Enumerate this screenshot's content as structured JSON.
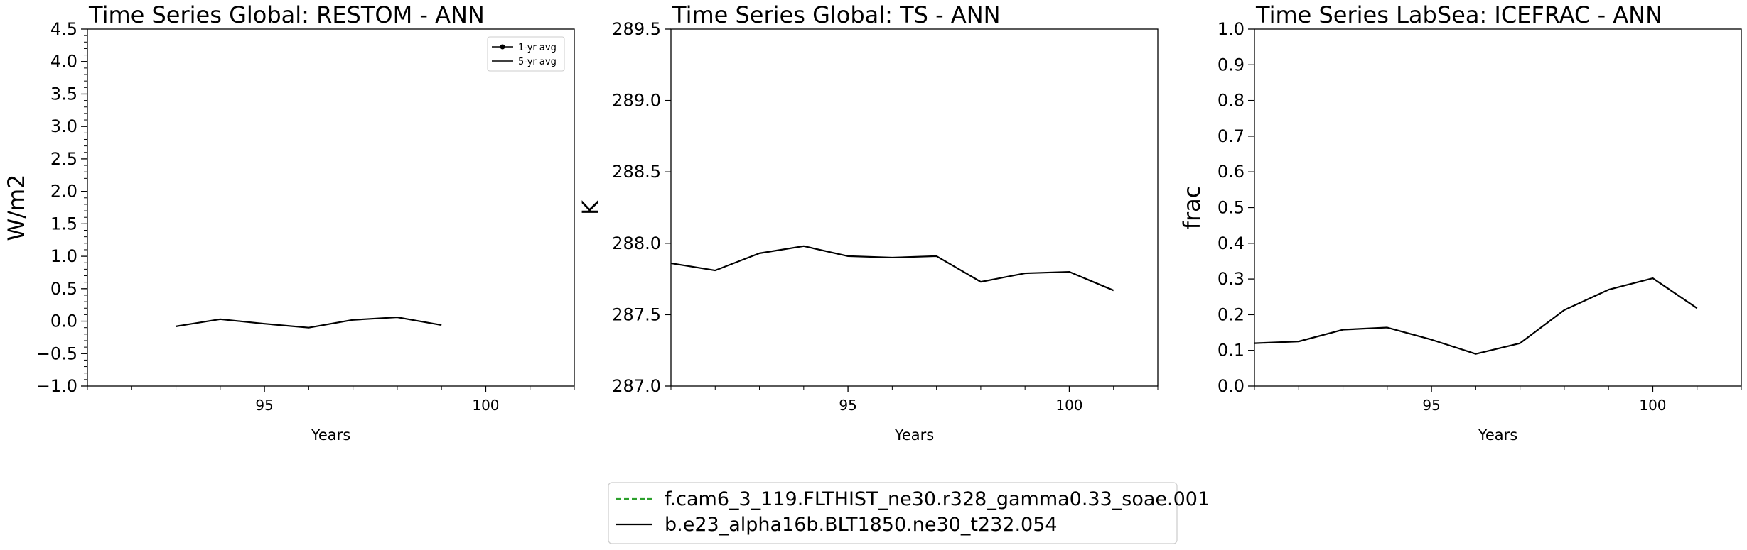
{
  "chart_data": [
    {
      "type": "line",
      "title": "Time Series Global: RESTOM - ANN",
      "xlabel": "Years",
      "ylabel": "W/m2",
      "xlim": [
        91,
        102
      ],
      "ylim": [
        -1.0,
        4.5
      ],
      "x_ticks": [
        "95",
        "100"
      ],
      "y_ticks": [
        "−1.0",
        "−0.5",
        "0.0",
        "0.5",
        "1.0",
        "1.5",
        "2.0",
        "2.5",
        "3.0",
        "3.5",
        "4.0",
        "4.5"
      ],
      "grid": false,
      "legend": [
        "1-yr avg",
        "5-yr avg"
      ],
      "legend_position": "top-right",
      "series": [
        {
          "name": "5-yr avg",
          "color": "#000000",
          "x": [
            93,
            94,
            95,
            96,
            97,
            98,
            99
          ],
          "y": [
            -0.08,
            0.03,
            -0.04,
            -0.1,
            0.02,
            0.06,
            -0.06
          ]
        }
      ]
    },
    {
      "type": "line",
      "title": "Time Series Global: TS - ANN",
      "xlabel": "Years",
      "ylabel": "K",
      "xlim": [
        91,
        102
      ],
      "ylim": [
        287.0,
        289.5
      ],
      "x_ticks": [
        "95",
        "100"
      ],
      "y_ticks": [
        "287.0",
        "287.5",
        "288.0",
        "288.5",
        "289.0",
        "289.5"
      ],
      "grid": false,
      "series": [
        {
          "color": "#000000",
          "x": [
            91,
            92,
            93,
            94,
            95,
            96,
            97,
            98,
            99,
            100,
            101
          ],
          "y": [
            287.86,
            287.81,
            287.93,
            287.98,
            287.91,
            287.9,
            287.91,
            287.73,
            287.79,
            287.8,
            287.67
          ]
        }
      ]
    },
    {
      "type": "line",
      "title": "Time Series LabSea: ICEFRAC - ANN",
      "xlabel": "Years",
      "ylabel": "frac",
      "xlim": [
        91,
        102
      ],
      "ylim": [
        0.0,
        1.0
      ],
      "x_ticks": [
        "95",
        "100"
      ],
      "y_ticks": [
        "0.0",
        "0.1",
        "0.2",
        "0.3",
        "0.4",
        "0.5",
        "0.6",
        "0.7",
        "0.8",
        "0.9",
        "1.0"
      ],
      "grid": false,
      "series": [
        {
          "color": "#000000",
          "x": [
            91,
            92,
            93,
            94,
            95,
            96,
            97,
            98,
            99,
            100,
            101
          ],
          "y": [
            0.12,
            0.125,
            0.158,
            0.164,
            0.13,
            0.09,
            0.12,
            0.213,
            0.27,
            0.302,
            0.218
          ]
        }
      ]
    }
  ],
  "figure_legend": {
    "position": "bottom-center",
    "entries": [
      {
        "label": "f.cam6_3_119.FLTHIST_ne30.r328_gamma0.33_soae.001",
        "color": "#2ca02c",
        "style": "dashed"
      },
      {
        "label": "b.e23_alpha16b.BLT1850.ne30_t232.054",
        "color": "#000000",
        "style": "solid"
      }
    ]
  }
}
